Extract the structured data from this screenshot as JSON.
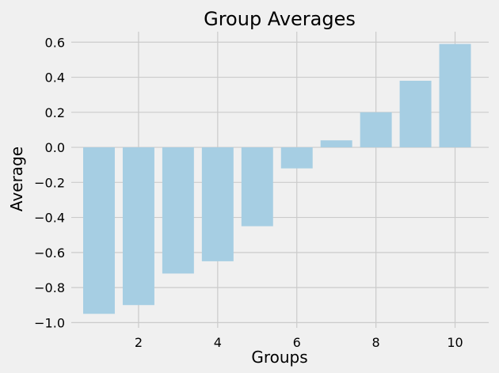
{
  "chart_data": {
    "type": "bar",
    "title": "Group Averages",
    "xlabel": "Groups",
    "ylabel": "Average",
    "categories": [
      1,
      2,
      3,
      4,
      5,
      6,
      7,
      8,
      9,
      10
    ],
    "values": [
      -0.95,
      -0.9,
      -0.72,
      -0.65,
      -0.45,
      -0.12,
      0.04,
      0.2,
      0.38,
      0.59
    ],
    "xlim": [
      0.3,
      10.85
    ],
    "ylim": [
      -1.03,
      0.66
    ],
    "xticks": [
      2,
      4,
      6,
      8,
      10
    ],
    "xtick_labels": [
      "2",
      "4",
      "6",
      "8",
      "10"
    ],
    "yticks": [
      -1.0,
      -0.8,
      -0.6,
      -0.4,
      -0.2,
      0.0,
      0.2,
      0.4,
      0.6
    ],
    "ytick_labels": [
      "−1.0",
      "−0.8",
      "−0.6",
      "−0.4",
      "−0.2",
      "0.0",
      "0.2",
      "0.4",
      "0.6"
    ],
    "grid": true,
    "bar_color": "#a6cee3",
    "background": "#f0f0f0",
    "grid_color": "#cbcbcb"
  }
}
